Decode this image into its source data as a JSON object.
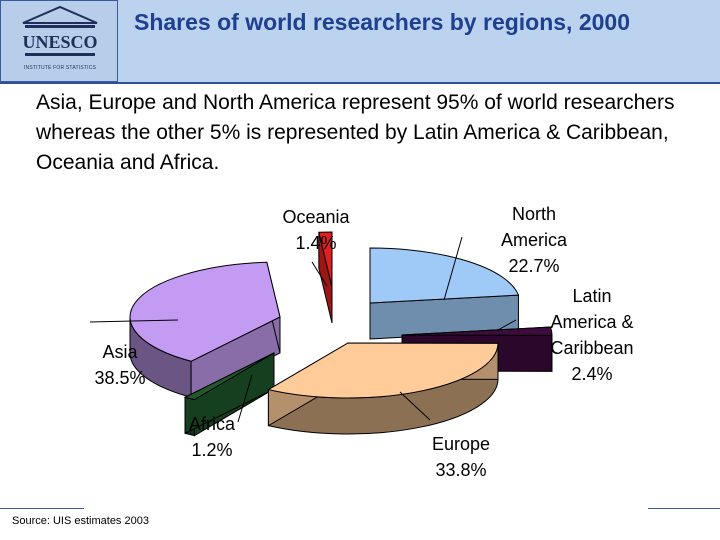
{
  "header": {
    "title": "Shares of world researchers by regions, 2000",
    "logo_text": "UNESCO",
    "logo_subtext": "INSTITUTE FOR STATISTICS"
  },
  "subtitle": "Asia, Europe and North America represent 95% of world researchers whereas the other 5% is represented by Latin America & Caribbean, Oceania and Africa.",
  "source": "Source: UIS estimates 2003",
  "colors": {
    "header_bg": "#bcd3ef",
    "title": "#1f3f8f",
    "north_america": "#9fcaf7",
    "latin_america": "#3d0b3d",
    "europe": "#ffcc99",
    "africa": "#1f5a2e",
    "asia": "#c39bf2",
    "oceania": "#e02020"
  },
  "chart_data": {
    "type": "pie",
    "title": "",
    "slices": [
      {
        "label": "North America",
        "value": 22.7,
        "display": "22.7%",
        "label_lines": [
          "North",
          "America",
          "22.7%"
        ]
      },
      {
        "label": "Latin America & Caribbean",
        "value": 2.4,
        "display": "2.4%",
        "label_lines": [
          "Latin",
          "America &",
          "Caribbean",
          "2.4%"
        ]
      },
      {
        "label": "Europe",
        "value": 33.8,
        "display": "33.8%",
        "label_lines": [
          "Europe",
          "33.8%"
        ]
      },
      {
        "label": "Africa",
        "value": 1.2,
        "display": "1.2%",
        "label_lines": [
          "Africa",
          "1.2%"
        ]
      },
      {
        "label": "Asia",
        "value": 38.5,
        "display": "38.5%",
        "label_lines": [
          "Asia",
          "38.5%"
        ]
      },
      {
        "label": "Oceania",
        "value": 1.4,
        "display": "1.4%",
        "label_lines": [
          "Oceania",
          "1.4%"
        ]
      }
    ],
    "style": "3d-exploded"
  }
}
